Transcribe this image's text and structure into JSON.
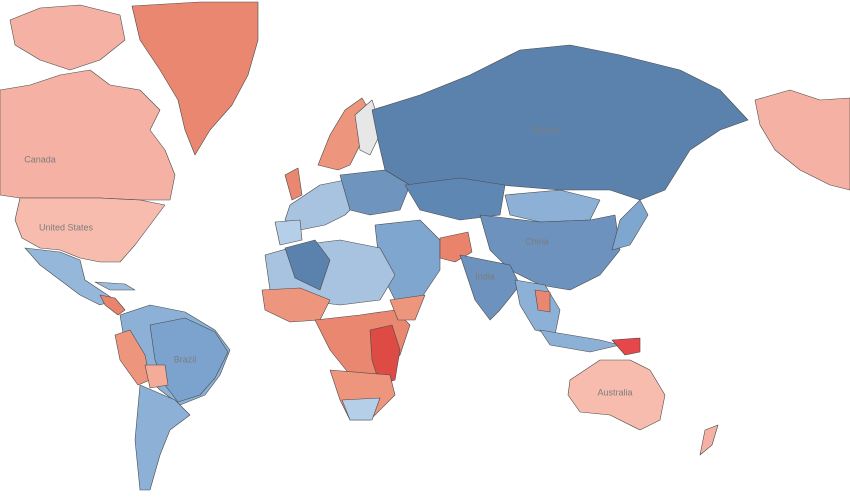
{
  "map": {
    "labels": [
      "Canada",
      "United States",
      "Brazil",
      "Russia",
      "China",
      "India",
      "Australia"
    ]
  }
}
